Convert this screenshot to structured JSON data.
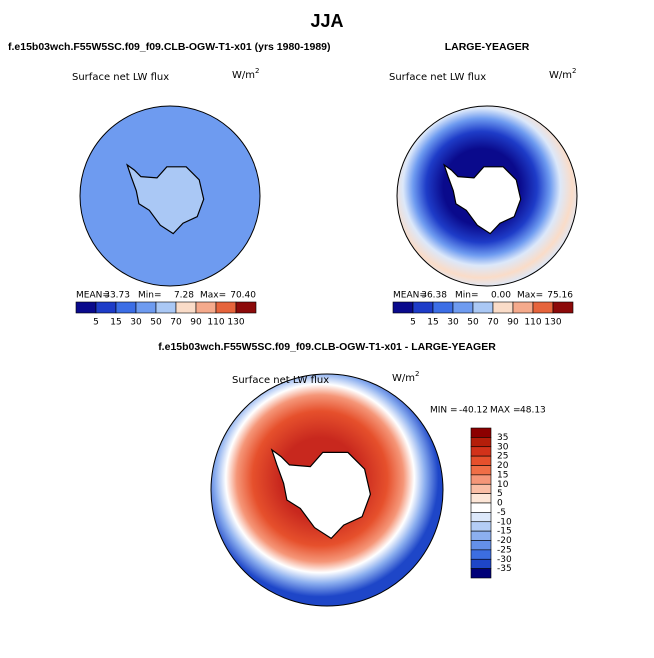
{
  "title": "JJA",
  "panels": [
    {
      "case": "f.e15b03wch.F55W5SC.f09_f09.CLB-OGW-T1-x01 (yrs 1980-1989)",
      "variable": "Surface net LW flux",
      "units": {
        "base": "W/m",
        "exponent": "2"
      },
      "stats": {
        "mean_label": "MEAN=",
        "mean": "33.73",
        "min_label": "Min=",
        "min": "7.28",
        "max_label": "Max=",
        "max": "70.40"
      },
      "colorbar": [
        5,
        15,
        30,
        50,
        70,
        90,
        110,
        130
      ]
    },
    {
      "case": "LARGE-YEAGER",
      "variable": "Surface net LW flux",
      "units": {
        "base": "W/m",
        "exponent": "2"
      },
      "stats": {
        "mean_label": "MEAN=",
        "mean": "36.38",
        "min_label": "Min=",
        "min": "0.00",
        "max_label": "Max=",
        "max": "75.16"
      },
      "colorbar": [
        5,
        15,
        30,
        50,
        70,
        90,
        110,
        130
      ]
    }
  ],
  "colors": [
    "#0a0a8c",
    "#1e3cc8",
    "#3c6ee6",
    "#6e9bf0",
    "#aac8f5",
    "#fadcc8",
    "#f5aa8c",
    "#e6643c",
    "#c8281e",
    "#8c0a0a"
  ],
  "difference": {
    "title": "f.e15b03wch.F55W5SC.f09_f09.CLB-OGW-T1-x01 - LARGE-YEAGER",
    "variable": "Surface net LW flux",
    "units": {
      "base": "W/m",
      "exponent": "2"
    },
    "stats": {
      "min_label": "MIN =",
      "min": "-40.12",
      "max_label": "MAX =",
      "max": "48.13"
    },
    "colorbar": [
      35,
      30,
      25,
      20,
      15,
      10,
      5,
      0,
      -5,
      -10,
      -15,
      -20,
      -25,
      -30,
      -35
    ],
    "colors": [
      "#8c0000",
      "#b41e0a",
      "#d2321a",
      "#e6502c",
      "#f06e46",
      "#f59678",
      "#fabea5",
      "#fde6d7",
      "#ffffff",
      "#dce8fa",
      "#b4cdf5",
      "#8cafef",
      "#6490e8",
      "#3c6ee1",
      "#1e46c8",
      "#0a1e96",
      "#000078"
    ]
  }
}
